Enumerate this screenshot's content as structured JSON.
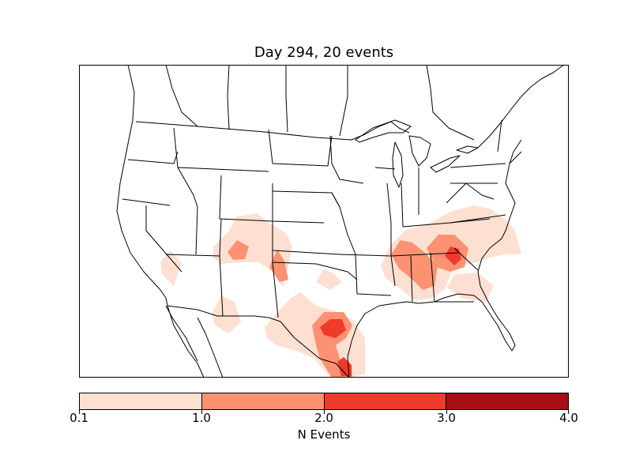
{
  "title": "Day 294, 20 events",
  "colorbar": {
    "label": "N Events",
    "ticks": [
      "0.1",
      "1.0",
      "2.0",
      "3.0",
      "4.0"
    ],
    "colors": [
      "#fee0d2",
      "#fc9272",
      "#ef3b2c",
      "#a50f15"
    ]
  },
  "map": {
    "region": "Continental United States",
    "projection": "lambert-conformal",
    "land_color": "#ffffff",
    "boundary_color": "#000000"
  },
  "chart_data": {
    "type": "heatmap",
    "title": "Day 294, 20 events",
    "colorbar_label": "N Events",
    "levels": [
      0.1,
      1.0,
      2.0,
      3.0,
      4.0
    ],
    "level_colors": [
      "#fee0d2",
      "#fc9272",
      "#ef3b2c",
      "#a50f15"
    ],
    "hotspots": [
      {
        "region": "Southwest Arizona",
        "max_level": 0.1
      },
      {
        "region": "Southern Utah / Northern Arizona",
        "max_level": 2.0
      },
      {
        "region": "Northeast New Mexico",
        "max_level": 1.0
      },
      {
        "region": "Southern Arizona / New Mexico border",
        "max_level": 0.1
      },
      {
        "region": "Oklahoma",
        "max_level": 0.1
      },
      {
        "region": "Central Texas",
        "max_level": 2.0
      },
      {
        "region": "South Texas coast",
        "max_level": 2.0
      },
      {
        "region": "Mississippi / Alabama",
        "max_level": 1.0
      },
      {
        "region": "Georgia / South Carolina",
        "max_level": 2.0
      },
      {
        "region": "Virginia / North Carolina",
        "max_level": 0.1
      },
      {
        "region": "Northern Florida",
        "max_level": 0.1
      }
    ]
  }
}
